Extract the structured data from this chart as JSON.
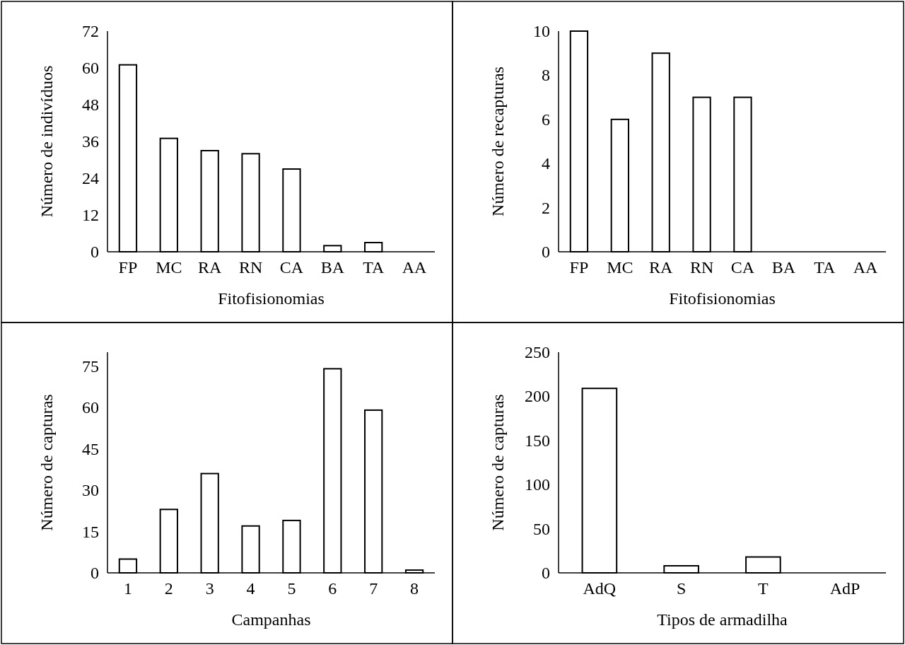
{
  "chart_data": [
    {
      "type": "bar",
      "categories": [
        "FP",
        "MC",
        "RA",
        "RN",
        "CA",
        "BA",
        "TA",
        "AA"
      ],
      "values": [
        61,
        37,
        33,
        32,
        27,
        2,
        3,
        0
      ],
      "color": "#ffffff",
      "xlabel": "Fitofisionomias",
      "ylabel": "Número de indivíduos",
      "ylim": [
        0,
        72
      ],
      "yticks": [
        0,
        12,
        24,
        36,
        48,
        60,
        72
      ]
    },
    {
      "type": "bar",
      "categories": [
        "FP",
        "MC",
        "RA",
        "RN",
        "CA",
        "BA",
        "TA",
        "AA"
      ],
      "values": [
        10,
        6,
        9,
        7,
        7,
        0,
        0,
        0
      ],
      "color": "#ffffff",
      "xlabel": "Fitofisionomias",
      "ylabel": "Número de recapturas",
      "ylim": [
        0,
        10
      ],
      "yticks": [
        0,
        2,
        4,
        6,
        8,
        10
      ]
    },
    {
      "type": "bar",
      "categories": [
        "1",
        "2",
        "3",
        "4",
        "5",
        "6",
        "7",
        "8"
      ],
      "values": [
        5,
        23,
        36,
        17,
        19,
        74,
        59,
        1
      ],
      "color": "#ffffff",
      "xlabel": "Campanhas",
      "ylabel": "Número de capturas",
      "ylim": [
        0,
        80
      ],
      "yticks": [
        0,
        15,
        30,
        45,
        60,
        75
      ]
    },
    {
      "type": "bar",
      "categories": [
        "AdQ",
        "S",
        "T",
        "AdP"
      ],
      "values": [
        209,
        8,
        18,
        0
      ],
      "color": "#ffffff",
      "xlabel": "Tipos de armadilha",
      "ylabel": "Número de capturas",
      "ylim": [
        0,
        250
      ],
      "yticks": [
        0,
        50,
        100,
        150,
        200,
        250
      ]
    }
  ]
}
